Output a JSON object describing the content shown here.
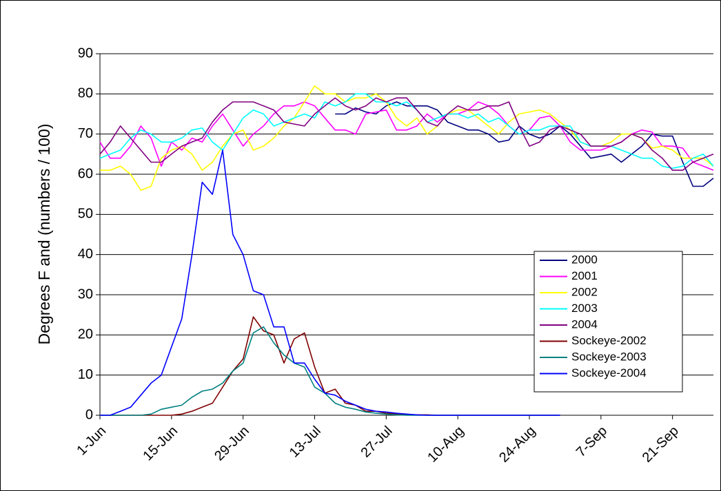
{
  "chart_data": {
    "type": "line",
    "y_label": "Degrees F and (numbers / 100)",
    "categories": [
      "1-Jun",
      null,
      null,
      null,
      null,
      null,
      null,
      "15-Jun",
      null,
      null,
      null,
      null,
      null,
      null,
      "29-Jun",
      null,
      null,
      null,
      null,
      null,
      null,
      "13-Jul",
      null,
      null,
      null,
      null,
      null,
      null,
      "27-Jul",
      null,
      null,
      null,
      null,
      null,
      null,
      "10-Aug",
      null,
      null,
      null,
      null,
      null,
      null,
      "24-Aug",
      null,
      null,
      null,
      null,
      null,
      null,
      "7-Sep",
      null,
      null,
      null,
      null,
      null,
      null,
      "21-Sep",
      null,
      null,
      null,
      null
    ],
    "ylim": [
      0,
      90
    ],
    "yticks": [
      0,
      10,
      20,
      30,
      40,
      50,
      60,
      70,
      80,
      90
    ],
    "grid": true,
    "legend": "lower right",
    "series": [
      {
        "name": "2000",
        "color": "#000080",
        "values": [
          null,
          null,
          null,
          null,
          null,
          null,
          null,
          null,
          null,
          null,
          null,
          null,
          null,
          null,
          null,
          null,
          null,
          null,
          null,
          null,
          null,
          null,
          null,
          75,
          75,
          76.5,
          75.5,
          75,
          77,
          78,
          77,
          77,
          77,
          76,
          73,
          72,
          71,
          71,
          70,
          68,
          68.5,
          72,
          70,
          69,
          70,
          72,
          70,
          67,
          64,
          64.5,
          65,
          63,
          65,
          67,
          70,
          69.5,
          69.5,
          63,
          57,
          57,
          59
        ]
      },
      {
        "name": "2001",
        "color": "#ff00ff",
        "values": [
          68,
          64,
          64,
          67,
          72,
          69,
          62,
          68,
          66,
          69,
          68,
          72,
          75,
          71,
          67,
          70,
          72,
          75,
          77,
          77,
          78,
          77,
          74,
          71,
          71,
          70,
          75,
          75.5,
          76,
          71,
          71,
          72,
          75,
          73,
          75,
          75,
          76,
          78,
          77,
          75,
          72,
          70,
          71,
          74,
          74.5,
          72,
          68,
          66,
          66,
          66,
          67,
          68,
          70,
          71,
          70.5,
          67,
          67,
          66.5,
          63,
          62,
          61
        ]
      },
      {
        "name": "2002",
        "color": "#ffff00",
        "values": [
          61,
          61,
          62,
          60,
          56,
          57,
          64,
          66,
          67,
          65,
          61,
          63,
          67,
          70,
          71,
          66,
          67,
          69,
          72,
          74,
          78,
          82,
          80,
          80,
          78,
          79,
          79,
          80,
          78,
          74,
          72,
          74,
          70,
          72,
          75,
          76,
          76,
          74,
          72,
          70,
          73,
          75,
          75.5,
          76,
          75,
          73,
          71,
          68,
          67,
          67,
          68,
          70,
          70,
          69,
          66.5,
          67,
          66,
          64,
          64,
          64,
          62
        ]
      },
      {
        "name": "2003",
        "color": "#00ffff",
        "values": [
          64,
          65,
          66,
          69,
          71,
          70,
          68,
          68,
          69,
          71,
          71.5,
          68,
          66,
          70,
          74,
          76,
          75,
          72,
          73,
          74,
          75,
          74,
          78,
          77,
          78,
          80,
          80,
          78,
          78,
          77,
          78,
          76,
          73,
          74,
          75,
          75,
          74,
          75,
          73,
          74,
          72,
          70,
          71,
          71,
          72,
          72,
          72,
          68,
          67,
          67,
          67,
          66,
          65,
          64,
          64,
          62,
          61.5,
          62,
          64,
          65,
          62
        ]
      },
      {
        "name": "2004",
        "color": "#800080",
        "values": [
          65,
          68,
          72,
          69,
          66,
          63,
          63,
          65,
          67,
          68,
          69,
          73,
          76,
          78,
          78,
          78,
          77,
          76,
          73,
          72.5,
          72,
          75,
          77,
          79,
          77,
          76,
          77,
          79,
          78,
          79,
          79,
          76,
          73,
          72,
          75,
          77,
          76,
          76,
          77,
          77,
          78,
          72,
          67,
          68,
          71,
          72,
          71,
          70,
          67,
          67,
          67,
          68,
          70,
          69,
          66,
          64,
          61,
          61,
          63,
          64,
          65
        ]
      },
      {
        "name": "Sockeye-2002",
        "color": "#800000",
        "values": [
          0,
          0,
          0,
          0,
          0,
          0,
          0,
          0,
          0.3,
          1,
          2,
          3,
          7,
          11,
          14,
          24.5,
          21,
          20,
          13,
          19,
          20.5,
          12,
          5.5,
          6.5,
          3,
          2.5,
          1,
          1,
          0.5,
          0.3,
          0.2,
          0.1,
          0.1,
          0,
          0,
          0,
          0,
          0,
          0,
          0,
          0,
          0,
          0,
          0,
          0,
          0,
          null,
          null,
          null,
          null,
          null,
          null,
          null,
          null,
          null,
          null,
          null,
          null,
          null,
          null,
          null
        ]
      },
      {
        "name": "Sockeye-2003",
        "color": "#008080",
        "values": [
          0,
          0,
          0,
          0,
          0,
          0.3,
          1.5,
          2,
          2.5,
          4.5,
          6,
          6.5,
          8,
          11,
          13,
          20.5,
          22,
          18,
          15,
          13,
          12,
          7,
          5.5,
          3,
          2,
          1.5,
          0.8,
          0.5,
          0.3,
          0.1,
          0,
          0,
          0,
          0,
          0,
          0,
          0,
          0,
          0,
          0,
          0,
          0,
          0,
          0,
          0,
          0,
          null,
          null,
          null,
          null,
          null,
          null,
          null,
          null,
          null,
          null,
          null,
          null,
          null,
          null,
          null
        ]
      },
      {
        "name": "Sockeye-2004",
        "color": "#0000ff",
        "values": [
          0,
          0,
          1,
          2,
          5,
          8,
          10,
          17,
          24,
          40,
          58,
          55,
          66,
          45,
          40,
          31,
          30,
          22,
          22,
          13,
          13,
          9,
          5.5,
          5,
          3.5,
          2.5,
          1.5,
          1,
          0.8,
          0.5,
          0.3,
          0.1,
          0,
          0,
          0,
          0,
          0,
          0,
          0,
          0,
          0,
          0,
          0,
          0,
          0,
          0,
          null,
          null,
          null,
          null,
          null,
          null,
          null,
          null,
          null,
          null,
          null,
          null,
          null,
          null,
          null
        ]
      }
    ]
  }
}
